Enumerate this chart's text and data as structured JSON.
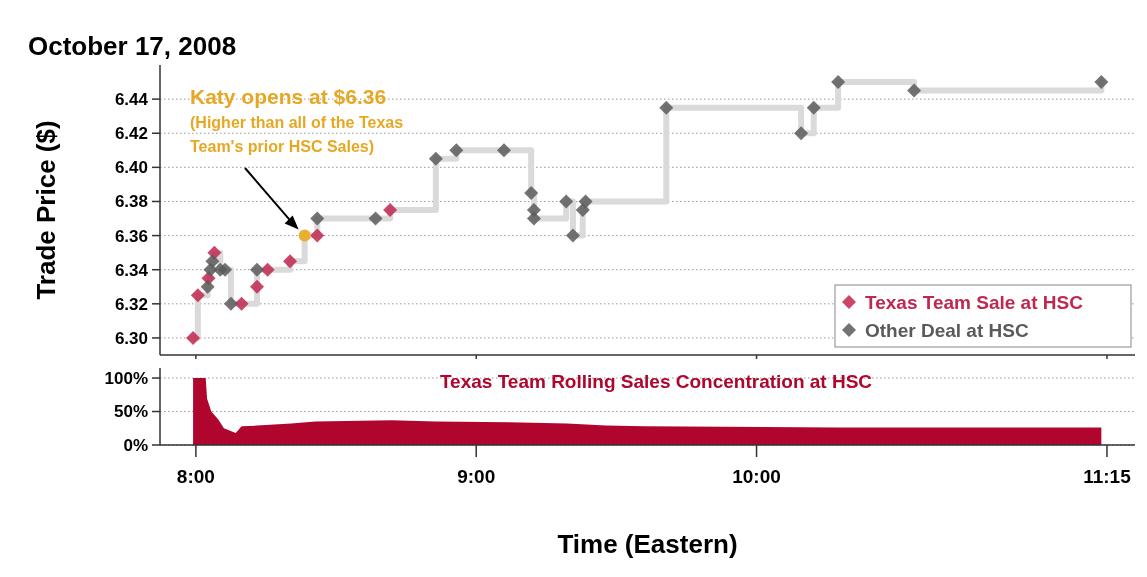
{
  "chart_data": [
    {
      "type": "scatter",
      "title": "October 17, 2008",
      "ylabel": "Trade Price ($)",
      "xlim": [
        7.872,
        11.35
      ],
      "ylim": [
        6.29,
        6.46
      ],
      "yticks": [
        {
          "value": 6.3,
          "label": "6.30"
        },
        {
          "value": 6.32,
          "label": "6.32"
        },
        {
          "value": 6.34,
          "label": "6.34"
        },
        {
          "value": 6.36,
          "label": "6.36"
        },
        {
          "value": 6.38,
          "label": "6.38"
        },
        {
          "value": 6.4,
          "label": "6.40"
        },
        {
          "value": 6.42,
          "label": "6.42"
        },
        {
          "value": 6.44,
          "label": "6.44"
        }
      ],
      "xticks": [
        {
          "value": 8,
          "label": null
        },
        {
          "value": 9,
          "label": null
        },
        {
          "value": 10,
          "label": null
        },
        {
          "value": 11.25,
          "label": null
        }
      ],
      "tick_labels": "y",
      "grid": "y",
      "legend": "bottom right",
      "marker": "diamond",
      "annotations": [
        "Katy opens at $6.36",
        "(Higher than all of the Texas Team's prior HSC Sales)"
      ],
      "series": [
        {
          "type": "step",
          "color": "#dadada",
          "marker": "none",
          "x": [
            7.99,
            8.007,
            8.042,
            8.045,
            8.052,
            8.059,
            8.066,
            8.087,
            8.104,
            8.125,
            8.163,
            8.218,
            8.218,
            8.256,
            8.336,
            8.388,
            8.433,
            8.433,
            8.641,
            8.693,
            8.856,
            8.929,
            9.099,
            9.196,
            9.206,
            9.206,
            9.321,
            9.345,
            9.38,
            9.39,
            9.678,
            10.159,
            10.204,
            10.291,
            10.562,
            11.23
          ],
          "values": [
            6.3,
            6.325,
            6.33,
            6.335,
            6.34,
            6.345,
            6.35,
            6.34,
            6.34,
            6.32,
            6.32,
            6.33,
            6.34,
            6.34,
            6.345,
            6.36,
            6.36,
            6.37,
            6.37,
            6.375,
            6.405,
            6.41,
            6.41,
            6.385,
            6.375,
            6.37,
            6.38,
            6.36,
            6.375,
            6.38,
            6.435,
            6.42,
            6.435,
            6.45,
            6.445,
            6.45
          ]
        },
        {
          "name": "Texas Team Sale at HSC",
          "color": "#c0284f",
          "x": [
            7.99,
            8.007,
            8.045,
            8.066,
            8.163,
            8.218,
            8.256,
            8.336,
            8.433,
            8.693
          ],
          "values": [
            6.3,
            6.325,
            6.335,
            6.35,
            6.32,
            6.33,
            6.34,
            6.345,
            6.36,
            6.375
          ]
        },
        {
          "name": "Other Deal at HSC",
          "color": "#5a5a5a",
          "x": [
            8.042,
            8.052,
            8.059,
            8.087,
            8.104,
            8.125,
            8.218,
            8.433,
            8.641,
            8.856,
            8.929,
            9.099,
            9.196,
            9.206,
            9.206,
            9.321,
            9.345,
            9.38,
            9.39,
            9.678,
            10.159,
            10.204,
            10.291,
            10.562,
            11.23
          ],
          "values": [
            6.33,
            6.34,
            6.345,
            6.34,
            6.34,
            6.32,
            6.34,
            6.37,
            6.37,
            6.405,
            6.41,
            6.41,
            6.385,
            6.375,
            6.37,
            6.38,
            6.36,
            6.375,
            6.38,
            6.435,
            6.42,
            6.435,
            6.45,
            6.445,
            6.45
          ]
        },
        {
          "color": "#e8b030",
          "marker": "circle",
          "x": [
            8.388
          ],
          "values": [
            6.36
          ]
        }
      ]
    },
    {
      "type": "area",
      "title": "Texas Team Rolling Sales Concentration at HSC",
      "xlabel": "Time (Eastern)",
      "xlim": [
        7.872,
        11.35
      ],
      "ylim": [
        0,
        115
      ],
      "yticks": [
        {
          "value": 0,
          "label": "0%"
        },
        {
          "value": 50,
          "label": "50%"
        },
        {
          "value": 100,
          "label": "100%"
        }
      ],
      "xticks": [
        {
          "value": 8,
          "label": "8:00"
        },
        {
          "value": 9,
          "label": "9:00"
        },
        {
          "value": 10,
          "label": "10:00"
        },
        {
          "value": 11.25,
          "label": "11:15"
        }
      ],
      "grid": "y",
      "color": "#b0062e",
      "x": [
        7.99,
        8.035,
        8.04,
        8.055,
        8.08,
        8.1,
        8.142,
        8.163,
        8.218,
        8.34,
        8.426,
        8.7,
        8.856,
        9.116,
        9.324,
        9.463,
        9.6,
        10.29,
        11.23
      ],
      "values": [
        100,
        100,
        69,
        50,
        38,
        25,
        18,
        28,
        29,
        32,
        35,
        37,
        35,
        34,
        32,
        29,
        28,
        26,
        26
      ]
    }
  ]
}
